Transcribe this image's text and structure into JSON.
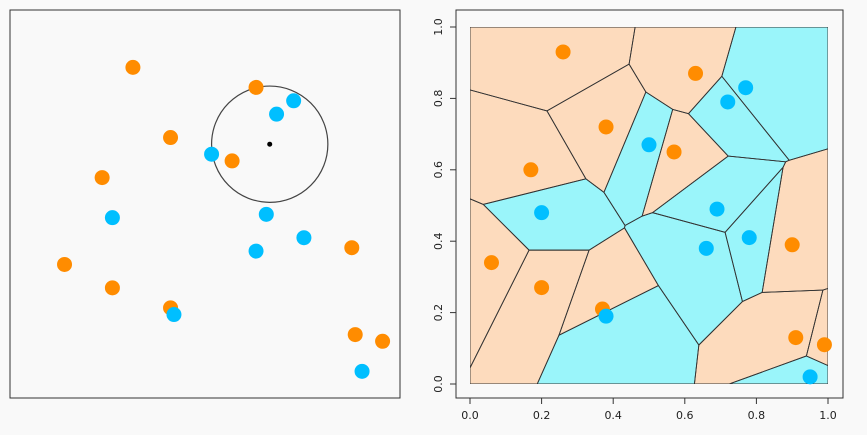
{
  "colors": {
    "orange": "#FF8C00",
    "blue": "#00BFFF",
    "orange_region": "#FDDBBD",
    "blue_region": "#9AF5FA",
    "background": "#F9F9F9"
  },
  "chart_data": [
    {
      "type": "scatter",
      "title": "",
      "xlabel": "",
      "ylabel": "",
      "xlim": [
        0,
        1
      ],
      "ylim": [
        0,
        1
      ],
      "axes_shown": false,
      "series": [
        {
          "color": "orange",
          "x": [
            0.26,
            0.62,
            0.37,
            0.55,
            0.17,
            0.06,
            0.2,
            0.37,
            0.9,
            0.91,
            0.99
          ],
          "y": [
            0.93,
            0.87,
            0.72,
            0.65,
            0.6,
            0.34,
            0.27,
            0.21,
            0.39,
            0.13,
            0.11
          ]
        },
        {
          "color": "blue",
          "x": [
            0.68,
            0.73,
            0.49,
            0.2,
            0.65,
            0.76,
            0.62,
            0.38,
            0.93
          ],
          "y": [
            0.79,
            0.83,
            0.67,
            0.48,
            0.49,
            0.42,
            0.38,
            0.19,
            0.02
          ]
        }
      ],
      "query_point": {
        "x": 0.66,
        "y": 0.7,
        "radius": 0.17
      }
    },
    {
      "type": "scatter",
      "title": "",
      "xlabel": "",
      "ylabel": "",
      "xlim": [
        0,
        1
      ],
      "ylim": [
        0,
        1
      ],
      "xticks": [
        "0.0",
        "0.2",
        "0.4",
        "0.6",
        "0.8",
        "1.0"
      ],
      "yticks": [
        "0.0",
        "0.2",
        "0.4",
        "0.6",
        "0.8",
        "1.0"
      ],
      "background_regions": "voronoi 1-nearest-neighbour regions, colored by class",
      "series": [
        {
          "color": "orange",
          "x": [
            0.26,
            0.63,
            0.38,
            0.57,
            0.17,
            0.06,
            0.2,
            0.37,
            0.9,
            0.91,
            0.99
          ],
          "y": [
            0.93,
            0.87,
            0.72,
            0.65,
            0.6,
            0.34,
            0.27,
            0.21,
            0.39,
            0.13,
            0.11
          ]
        },
        {
          "color": "blue",
          "x": [
            0.72,
            0.77,
            0.5,
            0.2,
            0.69,
            0.78,
            0.66,
            0.38,
            0.95
          ],
          "y": [
            0.79,
            0.83,
            0.67,
            0.48,
            0.49,
            0.41,
            0.38,
            0.19,
            0.02
          ]
        }
      ]
    }
  ]
}
